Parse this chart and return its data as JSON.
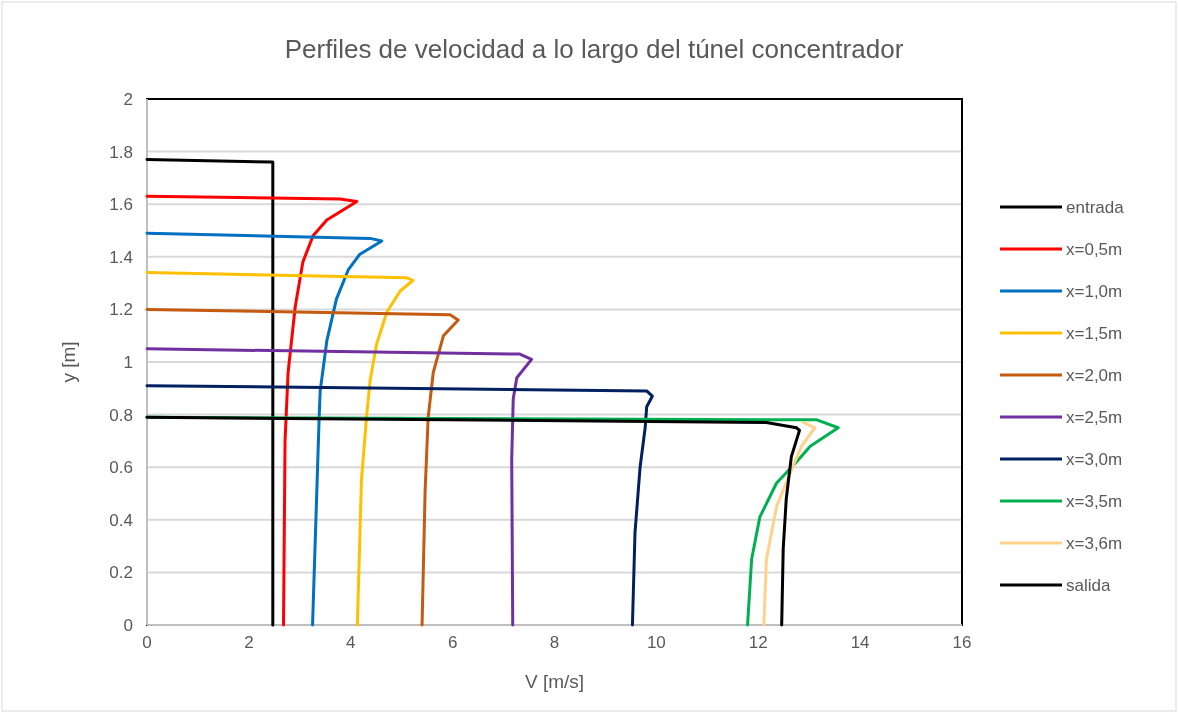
{
  "chart_data": {
    "type": "line",
    "title": "Perfiles de velocidad a lo largo del túnel concentrador",
    "xlabel": "V [m/s]",
    "ylabel": "y [m]",
    "xlim": [
      0,
      16
    ],
    "xticks": [
      0,
      2,
      4,
      6,
      8,
      10,
      12,
      14,
      16
    ],
    "ylim": [
      0,
      2
    ],
    "yticks": [
      0,
      0.2,
      0.4,
      0.6,
      0.8,
      1,
      1.2,
      1.4,
      1.6,
      1.8,
      2
    ],
    "grid": "y",
    "legend": "right",
    "marker": "none",
    "line_style": "solid",
    "series": [
      {
        "name": "entrada",
        "color": "#000000",
        "x": [
          0,
          2.47,
          2.47
        ],
        "values": [
          1.77,
          1.76,
          0
        ]
      },
      {
        "name": "x=0,5m",
        "color": "#ff0000",
        "x": [
          0,
          3.79,
          4.12,
          3.53,
          3.26,
          3.06,
          2.91,
          2.77,
          2.71,
          2.68
        ],
        "values": [
          1.63,
          1.62,
          1.61,
          1.54,
          1.48,
          1.38,
          1.21,
          0.96,
          0.7,
          0
        ]
      },
      {
        "name": "x=1,0m",
        "color": "#0070c0",
        "x": [
          0,
          4.38,
          4.61,
          4.18,
          3.95,
          3.72,
          3.53,
          3.4,
          3.38,
          3.25
        ],
        "values": [
          1.49,
          1.47,
          1.46,
          1.41,
          1.35,
          1.24,
          1.08,
          0.89,
          0.79,
          0
        ]
      },
      {
        "name": "x=1,5m",
        "color": "#ffc000",
        "x": [
          0,
          5.1,
          5.22,
          4.97,
          4.71,
          4.51,
          4.38,
          4.31,
          4.21,
          4.13
        ],
        "values": [
          1.34,
          1.32,
          1.31,
          1.27,
          1.19,
          1.07,
          0.93,
          0.79,
          0.55,
          0
        ]
      },
      {
        "name": "x=2,0m",
        "color": "#c55a11",
        "x": [
          0,
          5.95,
          6.11,
          5.82,
          5.62,
          5.52,
          5.46,
          5.4
        ],
        "values": [
          1.2,
          1.18,
          1.16,
          1.1,
          0.96,
          0.79,
          0.51,
          0
        ]
      },
      {
        "name": "x=2,5m",
        "color": "#7030a0",
        "x": [
          0,
          7.32,
          7.55,
          7.26,
          7.19,
          7.16,
          7.18
        ],
        "values": [
          1.05,
          1.03,
          1.01,
          0.94,
          0.86,
          0.63,
          0
        ]
      },
      {
        "name": "x=3,0m",
        "color": "#002060",
        "x": [
          0,
          9.81,
          9.92,
          9.81,
          9.78,
          9.68,
          9.58,
          9.53
        ],
        "values": [
          0.91,
          0.89,
          0.87,
          0.83,
          0.75,
          0.6,
          0.35,
          0
        ]
      },
      {
        "name": "x=3,5m",
        "color": "#00b050",
        "x": [
          0,
          13.15,
          13.57,
          13.02,
          12.75,
          12.36,
          12.03,
          11.87,
          11.79
        ],
        "values": [
          0.79,
          0.78,
          0.75,
          0.68,
          0.62,
          0.54,
          0.41,
          0.25,
          0
        ]
      },
      {
        "name": "x=3,6m",
        "color": "#ffd28c",
        "x": [
          12.88,
          13.11,
          12.85,
          12.65,
          12.36,
          12.16,
          12.11
        ],
        "values": [
          0.77,
          0.75,
          0.68,
          0.59,
          0.45,
          0.25,
          0
        ]
      },
      {
        "name": "salida",
        "color": "#000000",
        "x": [
          0,
          12.16,
          12.75,
          12.81,
          12.65,
          12.55,
          12.49,
          12.46
        ],
        "values": [
          0.79,
          0.77,
          0.75,
          0.74,
          0.64,
          0.48,
          0.29,
          0
        ]
      }
    ]
  }
}
